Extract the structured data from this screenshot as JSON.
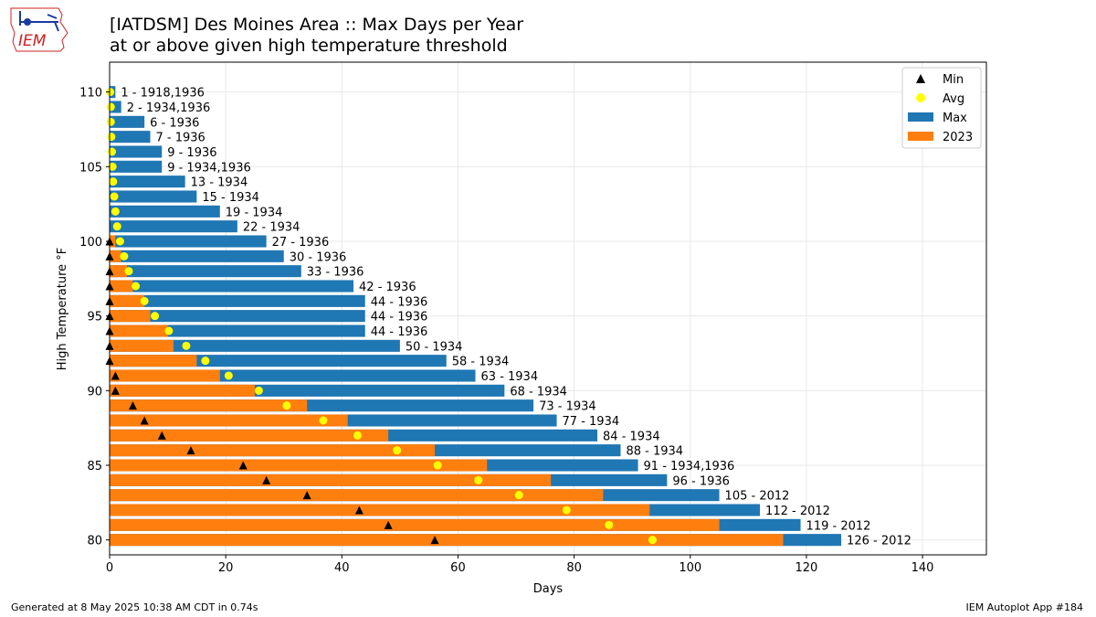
{
  "header": {
    "title": "[IATDSM] Des Moines Area :: Max Days per Year",
    "subtitle": "at or above given high temperature threshold",
    "logo_text": "IEM"
  },
  "footer": {
    "generated": "Generated at 8 May 2025 10:38 AM CDT in 0.74s",
    "app": "IEM Autoplot App #184"
  },
  "colors": {
    "max": "#1f77b4",
    "year": "#ff7f0e",
    "avg": "#ffff00",
    "min": "#000000",
    "logo": "#1a3aa0",
    "logo_text": "#cc2222"
  },
  "chart_data": {
    "type": "bar",
    "orientation": "horizontal",
    "xlabel": "Days",
    "ylabel": "High Temperature °F",
    "xlim": [
      0,
      151
    ],
    "ylim": [
      79,
      112
    ],
    "xticks": [
      0,
      20,
      40,
      60,
      80,
      100,
      120,
      140
    ],
    "yticks": [
      80,
      85,
      90,
      95,
      100,
      105,
      110
    ],
    "grid": true,
    "legend_position": "top-right",
    "legend": [
      {
        "label": "Min",
        "kind": "triangle"
      },
      {
        "label": "Avg",
        "kind": "circle"
      },
      {
        "label": "Max",
        "kind": "bar-max"
      },
      {
        "label": "2023",
        "kind": "bar-year"
      }
    ],
    "thresholds": [
      110,
      109,
      108,
      107,
      106,
      105,
      104,
      103,
      102,
      101,
      100,
      99,
      98,
      97,
      96,
      95,
      94,
      93,
      92,
      91,
      90,
      89,
      88,
      87,
      86,
      85,
      84,
      83,
      82,
      81,
      80
    ],
    "max": [
      1,
      2,
      6,
      7,
      9,
      9,
      13,
      15,
      19,
      22,
      27,
      30,
      33,
      42,
      44,
      44,
      44,
      50,
      58,
      63,
      68,
      73,
      77,
      84,
      88,
      91,
      96,
      105,
      112,
      119,
      126
    ],
    "max_labels": [
      "1 - 1918,1936",
      "2 - 1934,1936",
      "6 - 1936",
      "7 - 1936",
      "9 - 1936",
      "9 - 1934,1936",
      "13 - 1934",
      "15 - 1934",
      "19 - 1934",
      "22 - 1934",
      "27 - 1936",
      "30 - 1936",
      "33 - 1936",
      "42 - 1936",
      "44 - 1936",
      "44 - 1936",
      "44 - 1936",
      "50 - 1934",
      "58 - 1934",
      "63 - 1934",
      "68 - 1934",
      "73 - 1934",
      "77 - 1934",
      "84 - 1934",
      "88 - 1934",
      "91 - 1934,1936",
      "96 - 1936",
      "105 - 2012",
      "112 - 2012",
      "119 - 2012",
      "126 - 2012"
    ],
    "year_2023": [
      0,
      0,
      0,
      0,
      0,
      0,
      0,
      0,
      0,
      0,
      1,
      2,
      3,
      4,
      6,
      7,
      10,
      11,
      15,
      19,
      25,
      34,
      41,
      48,
      56,
      65,
      76,
      85,
      93,
      105,
      116
    ],
    "avg": [
      0.1,
      0.2,
      0.2,
      0.3,
      0.4,
      0.5,
      0.6,
      0.8,
      1.0,
      1.3,
      1.8,
      2.5,
      3.3,
      4.5,
      6.0,
      7.8,
      10.2,
      13.2,
      16.5,
      20.5,
      25.7,
      30.5,
      36.8,
      42.7,
      49.5,
      56.5,
      63.5,
      70.5,
      78.7,
      86.0,
      93.5
    ],
    "min": [
      null,
      null,
      null,
      null,
      null,
      null,
      null,
      null,
      null,
      null,
      0,
      0,
      0,
      0,
      0,
      0,
      0,
      0,
      0,
      1,
      1,
      4,
      6,
      9,
      14,
      23,
      27,
      34,
      43,
      48,
      56
    ]
  }
}
